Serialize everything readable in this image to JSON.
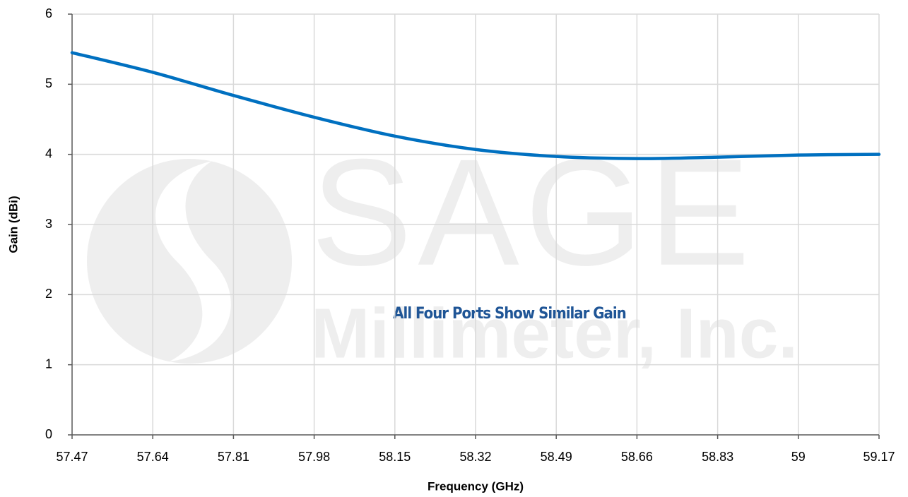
{
  "chart_data": {
    "type": "line",
    "x_label": "Frequency (GHz)",
    "y_label": "Gain (dBi)",
    "annotation": "All Four Ports Show Similar Gain",
    "watermark": [
      "SAGE",
      "Millimeter, Inc."
    ],
    "x": [
      57.47,
      57.64,
      57.81,
      57.98,
      58.15,
      58.32,
      58.49,
      58.66,
      58.83,
      59,
      59.17
    ],
    "series": [
      {
        "name": "Gain",
        "color": "#0070c0",
        "values": [
          5.45,
          5.17,
          4.84,
          4.53,
          4.26,
          4.07,
          3.97,
          3.94,
          3.96,
          3.99,
          4.0
        ]
      }
    ],
    "xlim": [
      57.47,
      59.17
    ],
    "xticks": [
      57.47,
      57.64,
      57.81,
      57.98,
      58.15,
      58.32,
      58.49,
      58.66,
      58.83,
      59,
      59.17
    ],
    "ylim": [
      0,
      6
    ],
    "yticks": [
      0,
      1,
      2,
      3,
      4,
      5,
      6
    ],
    "grid": true
  }
}
